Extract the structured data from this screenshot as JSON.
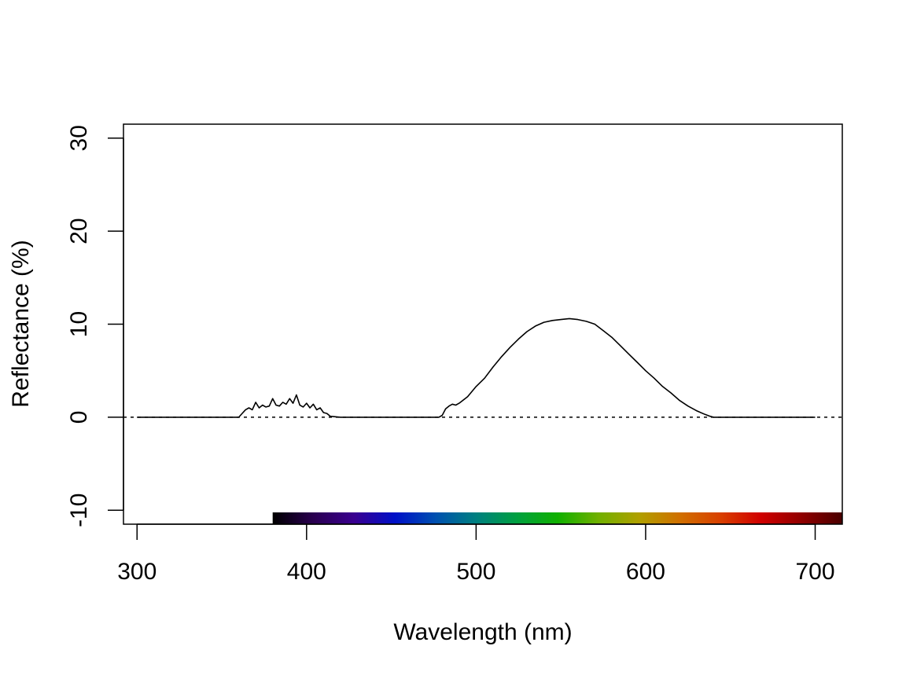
{
  "chart_data": {
    "type": "line",
    "title": "",
    "xlabel": "Wavelength (nm)",
    "ylabel": "Reflectance (%)",
    "xlim": [
      292,
      716
    ],
    "ylim": [
      -11.5,
      31.5
    ],
    "x_ticks": [
      300,
      400,
      500,
      600,
      700
    ],
    "y_ticks": [
      -10,
      0,
      10,
      20,
      30
    ],
    "grid": false,
    "legend": "none",
    "reference_line": {
      "y": 0,
      "style": "dotted"
    },
    "spectrum_bar": {
      "x_range": [
        380,
        716
      ],
      "colors": [
        "#000000",
        "#2a0050",
        "#3a0090",
        "#0010c8",
        "#0050b0",
        "#008080",
        "#00a040",
        "#10b000",
        "#70b000",
        "#b0a000",
        "#d07000",
        "#d84000",
        "#d00000",
        "#900000",
        "#4a0000"
      ]
    },
    "series": [
      {
        "color": "#000000",
        "x": [
          300,
          360,
          362,
          364,
          366,
          368,
          370,
          372,
          374,
          376,
          378,
          380,
          382,
          384,
          386,
          388,
          390,
          392,
          394,
          396,
          398,
          400,
          402,
          404,
          406,
          408,
          410,
          412,
          414,
          420,
          478,
          480,
          482,
          484,
          486,
          488,
          490,
          495,
          500,
          505,
          510,
          515,
          520,
          525,
          530,
          535,
          540,
          545,
          550,
          555,
          560,
          565,
          570,
          575,
          580,
          585,
          590,
          595,
          600,
          605,
          610,
          615,
          620,
          625,
          630,
          635,
          638,
          640,
          700
        ],
        "y": [
          0,
          0,
          0.4,
          0.8,
          1.0,
          0.8,
          1.6,
          1.0,
          1.3,
          1.1,
          1.2,
          2.0,
          1.3,
          1.2,
          1.6,
          1.4,
          2.0,
          1.5,
          2.4,
          1.3,
          1.1,
          1.5,
          1.0,
          1.4,
          0.8,
          1.0,
          0.5,
          0.4,
          0.1,
          0,
          0,
          0.2,
          0.9,
          1.2,
          1.4,
          1.3,
          1.5,
          2.2,
          3.3,
          4.2,
          5.4,
          6.5,
          7.5,
          8.4,
          9.2,
          9.8,
          10.2,
          10.4,
          10.5,
          10.6,
          10.5,
          10.3,
          10.0,
          9.3,
          8.6,
          7.7,
          6.8,
          5.9,
          5.0,
          4.2,
          3.3,
          2.6,
          1.8,
          1.2,
          0.7,
          0.3,
          0.1,
          0,
          0
        ]
      }
    ]
  }
}
